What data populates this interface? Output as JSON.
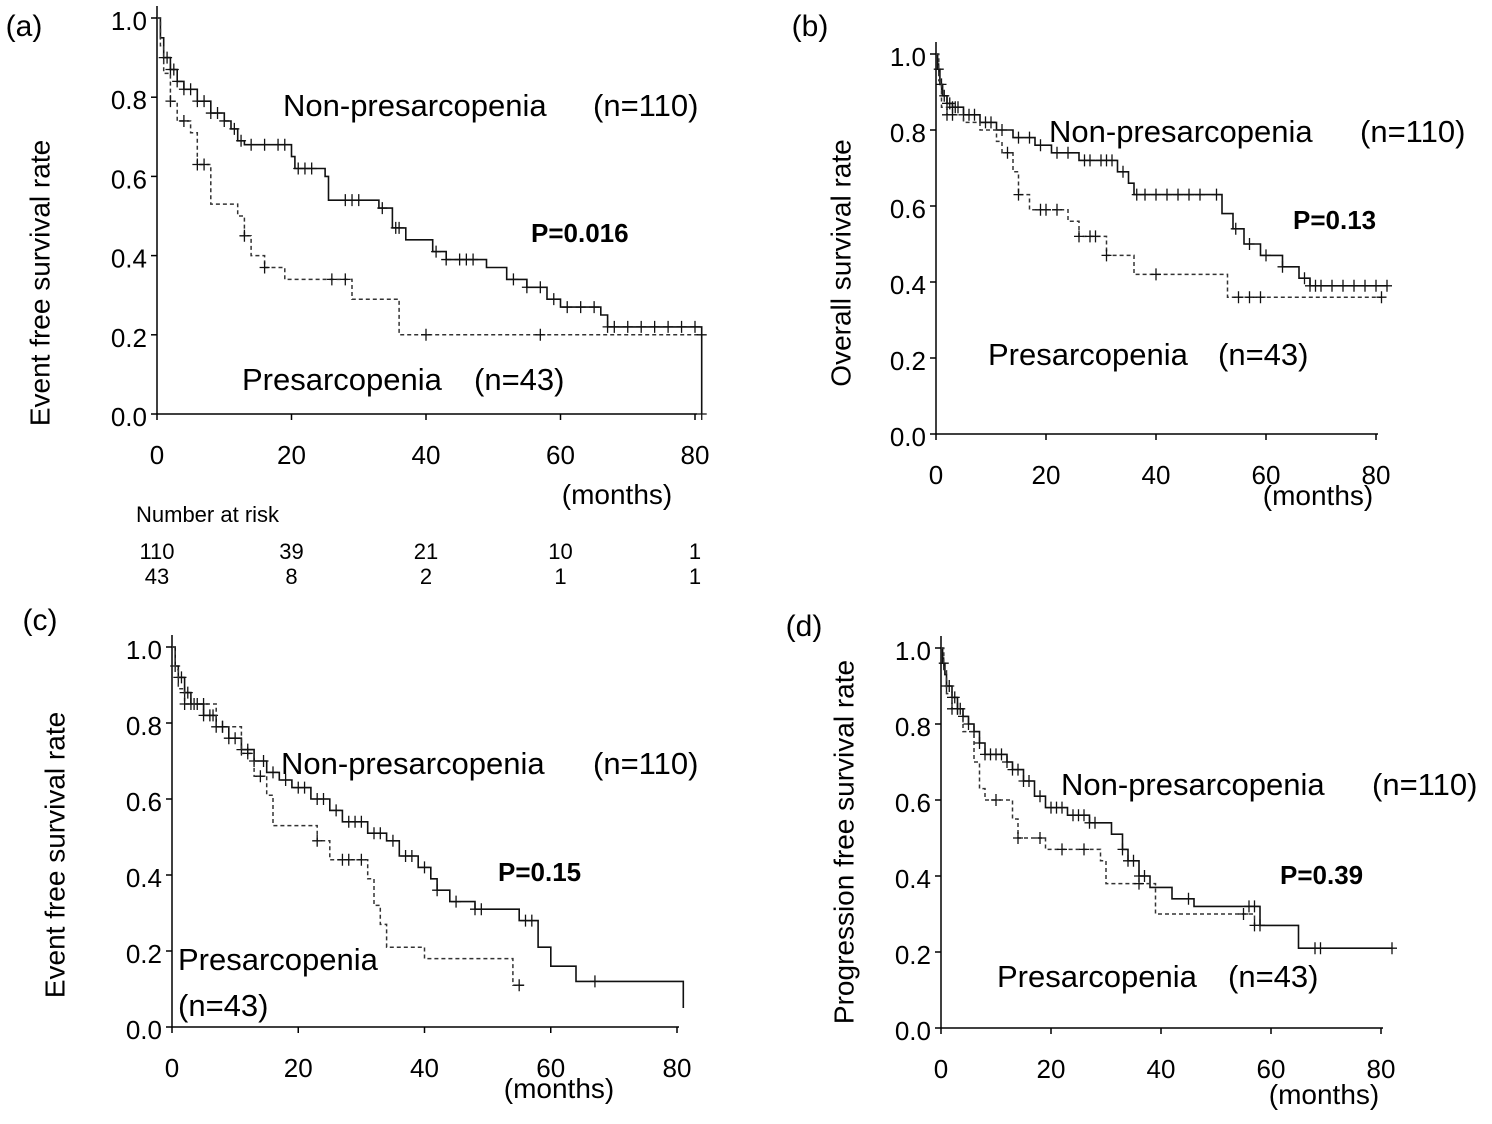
{
  "chart_data": [
    {
      "panel_label": "(a)",
      "type": "line",
      "xlabel": "(months)",
      "ylabel": "Event free survival rate",
      "xlim": [
        0,
        80
      ],
      "ylim": [
        0,
        1
      ],
      "x_ticks": [
        "0",
        "20",
        "40",
        "60",
        "80"
      ],
      "y_ticks": [
        "0.0",
        "0.2",
        "0.4",
        "0.6",
        "0.8",
        "1.0"
      ],
      "p_value": "P=0.016",
      "series": [
        {
          "name": "Non-presarcopenia (n=110)",
          "label": "Non-presarcopenia",
          "n": "(n=110)",
          "style": "solid",
          "steps": [
            [
              0,
              1.0
            ],
            [
              0.5,
              0.95
            ],
            [
              1,
              0.9
            ],
            [
              2,
              0.87
            ],
            [
              3,
              0.84
            ],
            [
              4,
              0.82
            ],
            [
              6,
              0.79
            ],
            [
              8,
              0.76
            ],
            [
              10,
              0.74
            ],
            [
              11,
              0.72
            ],
            [
              12,
              0.69
            ],
            [
              13,
              0.68
            ],
            [
              20,
              0.65
            ],
            [
              20.5,
              0.62
            ],
            [
              25,
              0.6
            ],
            [
              25.5,
              0.54
            ],
            [
              33,
              0.52
            ],
            [
              35,
              0.47
            ],
            [
              37,
              0.44
            ],
            [
              41,
              0.41
            ],
            [
              43,
              0.39
            ],
            [
              49,
              0.37
            ],
            [
              52,
              0.34
            ],
            [
              55,
              0.32
            ],
            [
              58,
              0.29
            ],
            [
              60,
              0.27
            ],
            [
              66,
              0.25
            ],
            [
              67,
              0.22
            ],
            [
              81,
              0.21
            ],
            [
              81,
              0.0
            ]
          ],
          "censor_x": [
            1,
            1.5,
            2,
            2.5,
            3,
            4,
            5,
            6,
            7,
            8,
            9,
            10,
            11.5,
            12.5,
            14,
            16,
            18,
            19,
            21,
            22,
            23,
            28,
            29,
            30,
            33.5,
            35.5,
            36,
            41.5,
            43,
            45,
            46,
            47,
            53,
            55,
            57,
            59,
            61,
            63,
            65,
            67,
            68,
            70,
            72,
            74,
            76,
            78,
            80,
            81
          ]
        },
        {
          "name": "Presarcopenia (n=43)",
          "label": "Presarcopenia",
          "n": "(n=43)",
          "style": "dashed",
          "steps": [
            [
              0,
              1.0
            ],
            [
              0.5,
              0.93
            ],
            [
              1,
              0.86
            ],
            [
              2,
              0.79
            ],
            [
              3,
              0.74
            ],
            [
              5,
              0.71
            ],
            [
              6,
              0.63
            ],
            [
              8,
              0.53
            ],
            [
              12,
              0.5
            ],
            [
              13,
              0.45
            ],
            [
              14,
              0.4
            ],
            [
              16,
              0.37
            ],
            [
              19,
              0.34
            ],
            [
              29,
              0.29
            ],
            [
              36,
              0.2
            ],
            [
              81,
              0.2
            ]
          ],
          "censor_x": [
            2,
            4,
            6,
            7,
            13,
            16,
            26,
            28,
            40,
            57,
            81
          ]
        }
      ],
      "risk_table": {
        "title": "Number at risk",
        "columns_x": [
          0,
          20,
          40,
          60,
          80
        ],
        "rows": [
          [
            "110",
            "39",
            "21",
            "10",
            "1"
          ],
          [
            "43",
            "8",
            "2",
            "1",
            "1"
          ]
        ]
      }
    },
    {
      "panel_label": "(b)",
      "type": "line",
      "xlabel": "(months)",
      "ylabel": "Overall survival rate",
      "xlim": [
        0,
        80
      ],
      "ylim": [
        0,
        1
      ],
      "x_ticks": [
        "0",
        "20",
        "40",
        "60",
        "80"
      ],
      "y_ticks": [
        "0.0",
        "0.2",
        "0.4",
        "0.6",
        "0.8",
        "1.0"
      ],
      "p_value": "P=0.13",
      "series": [
        {
          "name": "Non-presarcopenia (n=110)",
          "label": "Non-presarcopenia",
          "n": "(n=110)",
          "style": "solid",
          "steps": [
            [
              0,
              1.0
            ],
            [
              0.3,
              0.96
            ],
            [
              0.7,
              0.92
            ],
            [
              1.2,
              0.89
            ],
            [
              2,
              0.87
            ],
            [
              3,
              0.86
            ],
            [
              5,
              0.84
            ],
            [
              8,
              0.82
            ],
            [
              11,
              0.8
            ],
            [
              14,
              0.78
            ],
            [
              18,
              0.76
            ],
            [
              21,
              0.74
            ],
            [
              26,
              0.72
            ],
            [
              33,
              0.69
            ],
            [
              35,
              0.66
            ],
            [
              36,
              0.63
            ],
            [
              52,
              0.58
            ],
            [
              54,
              0.54
            ],
            [
              56,
              0.5
            ],
            [
              59,
              0.47
            ],
            [
              63,
              0.44
            ],
            [
              66,
              0.41
            ],
            [
              68,
              0.39
            ],
            [
              82,
              0.39
            ]
          ],
          "censor_x": [
            0.5,
            1,
            1.5,
            2,
            2.5,
            3,
            3.5,
            4,
            5,
            6,
            7,
            9,
            10,
            12,
            15,
            17,
            19,
            22,
            24,
            27,
            28,
            30,
            31,
            32,
            34,
            36.5,
            38,
            40,
            42,
            44,
            46,
            48,
            51,
            54.5,
            57,
            60,
            63,
            67,
            68,
            69,
            70,
            72,
            74,
            76,
            78,
            80,
            82
          ]
        },
        {
          "name": "Presarcopenia (n=43)",
          "label": "Presarcopenia",
          "n": "(n=43)",
          "style": "dashed",
          "steps": [
            [
              0,
              1.0
            ],
            [
              0.5,
              0.93
            ],
            [
              1,
              0.86
            ],
            [
              2,
              0.84
            ],
            [
              5,
              0.82
            ],
            [
              8,
              0.8
            ],
            [
              11,
              0.77
            ],
            [
              12,
              0.74
            ],
            [
              14,
              0.69
            ],
            [
              15,
              0.63
            ],
            [
              17,
              0.59
            ],
            [
              24,
              0.56
            ],
            [
              26,
              0.52
            ],
            [
              31,
              0.47
            ],
            [
              36,
              0.42
            ],
            [
              53,
              0.36
            ],
            [
              81,
              0.36
            ]
          ],
          "censor_x": [
            2,
            3,
            13,
            15,
            19,
            20,
            22,
            26,
            28,
            29,
            31,
            40,
            55,
            57,
            59,
            81
          ]
        }
      ]
    },
    {
      "panel_label": "(c)",
      "type": "line",
      "xlabel": "(months)",
      "ylabel": "Event free survival rate",
      "xlim": [
        0,
        80
      ],
      "ylim": [
        0,
        1
      ],
      "x_ticks": [
        "0",
        "20",
        "40",
        "60",
        "80"
      ],
      "y_ticks": [
        "0.0",
        "0.2",
        "0.4",
        "0.6",
        "0.8",
        "1.0"
      ],
      "p_value": "P=0.15",
      "series": [
        {
          "name": "Non-presarcopenia (n=110)",
          "label": "Non-presarcopenia",
          "n": "(n=110)",
          "style": "solid",
          "steps": [
            [
              0,
              1.0
            ],
            [
              0.5,
              0.95
            ],
            [
              1,
              0.92
            ],
            [
              2,
              0.88
            ],
            [
              3,
              0.85
            ],
            [
              5,
              0.82
            ],
            [
              7,
              0.79
            ],
            [
              9,
              0.76
            ],
            [
              11,
              0.73
            ],
            [
              13,
              0.7
            ],
            [
              15,
              0.67
            ],
            [
              17,
              0.65
            ],
            [
              19,
              0.63
            ],
            [
              22,
              0.6
            ],
            [
              25,
              0.57
            ],
            [
              27,
              0.54
            ],
            [
              31,
              0.51
            ],
            [
              34,
              0.49
            ],
            [
              36,
              0.45
            ],
            [
              39,
              0.42
            ],
            [
              41,
              0.39
            ],
            [
              42,
              0.36
            ],
            [
              44,
              0.33
            ],
            [
              48,
              0.31
            ],
            [
              55,
              0.28
            ],
            [
              58,
              0.21
            ],
            [
              60,
              0.16
            ],
            [
              64,
              0.12
            ],
            [
              81,
              0.12
            ],
            [
              81,
              0.05
            ]
          ],
          "censor_x": [
            0.5,
            1,
            1.5,
            2,
            2.5,
            3,
            3.5,
            4,
            5,
            6,
            6.5,
            7,
            8,
            9,
            10,
            11,
            12,
            13,
            14.5,
            16,
            18,
            20,
            21,
            23,
            24,
            26,
            28,
            29,
            30,
            32,
            33,
            35,
            37,
            38,
            40,
            42,
            45,
            48,
            49,
            56,
            57,
            67
          ]
        },
        {
          "name": "Presarcopenia (n=43)",
          "label": "Presarcopenia",
          "n": "(n=43)",
          "label_line2": true,
          "style": "dashed",
          "steps": [
            [
              0,
              1.0
            ],
            [
              0.5,
              0.94
            ],
            [
              1,
              0.89
            ],
            [
              2,
              0.85
            ],
            [
              7,
              0.79
            ],
            [
              11,
              0.72
            ],
            [
              13,
              0.66
            ],
            [
              15,
              0.61
            ],
            [
              16,
              0.53
            ],
            [
              23,
              0.49
            ],
            [
              25,
              0.44
            ],
            [
              31,
              0.39
            ],
            [
              32,
              0.32
            ],
            [
              33,
              0.27
            ],
            [
              34,
              0.21
            ],
            [
              40,
              0.18
            ],
            [
              54,
              0.11
            ],
            [
              56,
              0.11
            ]
          ],
          "censor_x": [
            2,
            5,
            8,
            12,
            14,
            23,
            27,
            28,
            30,
            55
          ]
        }
      ]
    },
    {
      "panel_label": "(d)",
      "type": "line",
      "xlabel": "(months)",
      "ylabel": "Progression free survival rate",
      "xlim": [
        0,
        80
      ],
      "ylim": [
        0,
        1
      ],
      "x_ticks": [
        "0",
        "20",
        "40",
        "60",
        "80"
      ],
      "y_ticks": [
        "0.0",
        "0.2",
        "0.4",
        "0.6",
        "0.8",
        "1.0"
      ],
      "p_value": "P=0.39",
      "series": [
        {
          "name": "Non-presarcopenia (n=110)",
          "label": "Non-presarcopenia",
          "n": "(n=110)",
          "style": "solid",
          "steps": [
            [
              0,
              1.0
            ],
            [
              0.3,
              0.96
            ],
            [
              0.7,
              0.93
            ],
            [
              1,
              0.9
            ],
            [
              2,
              0.87
            ],
            [
              3,
              0.84
            ],
            [
              4,
              0.82
            ],
            [
              5,
              0.8
            ],
            [
              6,
              0.78
            ],
            [
              7,
              0.75
            ],
            [
              8,
              0.72
            ],
            [
              12,
              0.7
            ],
            [
              13,
              0.68
            ],
            [
              15,
              0.65
            ],
            [
              17,
              0.61
            ],
            [
              19,
              0.58
            ],
            [
              23,
              0.56
            ],
            [
              27,
              0.54
            ],
            [
              31,
              0.51
            ],
            [
              33,
              0.47
            ],
            [
              34,
              0.44
            ],
            [
              36,
              0.4
            ],
            [
              38,
              0.37
            ],
            [
              42,
              0.34
            ],
            [
              46,
              0.32
            ],
            [
              58,
              0.27
            ],
            [
              65,
              0.21
            ],
            [
              82,
              0.21
            ]
          ],
          "censor_x": [
            0.5,
            1,
            1.5,
            2,
            2.5,
            3,
            3.5,
            4,
            5,
            6,
            7,
            8,
            9,
            10,
            11,
            12,
            13,
            14,
            15,
            16,
            18,
            20,
            21,
            22,
            24,
            25,
            26,
            27,
            28,
            33,
            34,
            35,
            36,
            37,
            45,
            56,
            57,
            58,
            68,
            69,
            82
          ]
        },
        {
          "name": "Presarcopenia (n=43)",
          "label": "Presarcopenia",
          "n": "(n=43)",
          "style": "dashed",
          "steps": [
            [
              0,
              1.0
            ],
            [
              0.5,
              0.94
            ],
            [
              1,
              0.88
            ],
            [
              2,
              0.84
            ],
            [
              4,
              0.78
            ],
            [
              6,
              0.7
            ],
            [
              7,
              0.63
            ],
            [
              8,
              0.6
            ],
            [
              13,
              0.55
            ],
            [
              14,
              0.5
            ],
            [
              19,
              0.47
            ],
            [
              29,
              0.44
            ],
            [
              30,
              0.38
            ],
            [
              39,
              0.3
            ],
            [
              57,
              0.27
            ],
            [
              58,
              0.27
            ]
          ],
          "censor_x": [
            2,
            3,
            10,
            14,
            18,
            22,
            26,
            36,
            55,
            57
          ]
        }
      ]
    }
  ]
}
